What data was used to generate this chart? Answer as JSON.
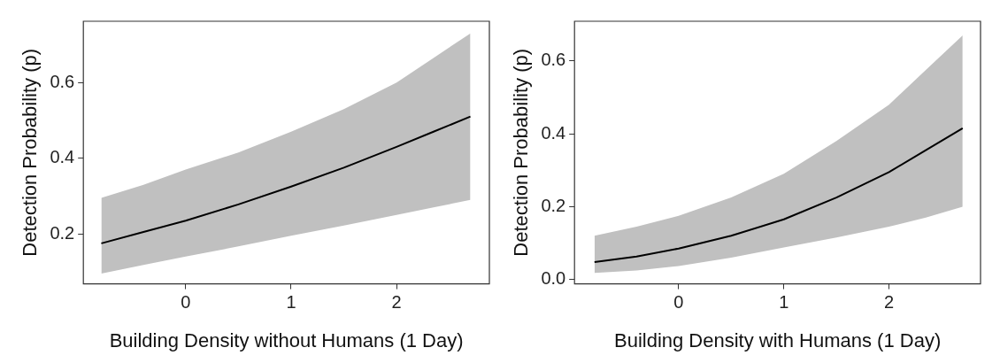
{
  "chart_data": [
    {
      "type": "line",
      "xlabel": "Building Density without Humans (1 Day)",
      "ylabel": "Detection Probability (p)",
      "x": [
        -0.8,
        -0.4,
        0,
        0.5,
        1,
        1.5,
        2,
        2.35,
        2.7
      ],
      "xlim": [
        -0.97,
        2.88
      ],
      "xticks": [
        0,
        1,
        2
      ],
      "ylim": [
        0.068,
        0.762
      ],
      "yticks": [
        0.2,
        0.4,
        0.6
      ],
      "grid": false,
      "legend": false,
      "marker": "none",
      "line_style": "solid",
      "series": [
        {
          "color": "#000000",
          "values": [
            0.175,
            0.205,
            0.235,
            0.278,
            0.325,
            0.375,
            0.43,
            0.47,
            0.51
          ],
          "lower": [
            0.095,
            0.118,
            0.14,
            0.167,
            0.195,
            0.222,
            0.25,
            0.27,
            0.29
          ],
          "upper": [
            0.295,
            0.33,
            0.37,
            0.415,
            0.47,
            0.53,
            0.6,
            0.665,
            0.73
          ]
        }
      ]
    },
    {
      "type": "line",
      "xlabel": "Building Density with Humans (1 Day)",
      "ylabel": "Detection Probability (p)",
      "x": [
        -0.8,
        -0.4,
        0,
        0.5,
        1,
        1.5,
        2,
        2.35,
        2.7
      ],
      "xlim": [
        -0.99,
        2.87
      ],
      "xticks": [
        0,
        1,
        2
      ],
      "ylim": [
        -0.012,
        0.709
      ],
      "yticks": [
        {
          "value": 0,
          "label": "0.0"
        },
        0.2,
        0.4,
        0.6
      ],
      "grid": false,
      "legend": false,
      "marker": "none",
      "line_style": "solid",
      "series": [
        {
          "color": "#000000",
          "values": [
            0.048,
            0.063,
            0.085,
            0.12,
            0.165,
            0.225,
            0.295,
            0.355,
            0.415
          ],
          "lower": [
            0.018,
            0.025,
            0.037,
            0.06,
            0.088,
            0.115,
            0.145,
            0.17,
            0.2
          ],
          "upper": [
            0.12,
            0.145,
            0.175,
            0.225,
            0.29,
            0.38,
            0.48,
            0.575,
            0.67
          ]
        }
      ]
    }
  ]
}
